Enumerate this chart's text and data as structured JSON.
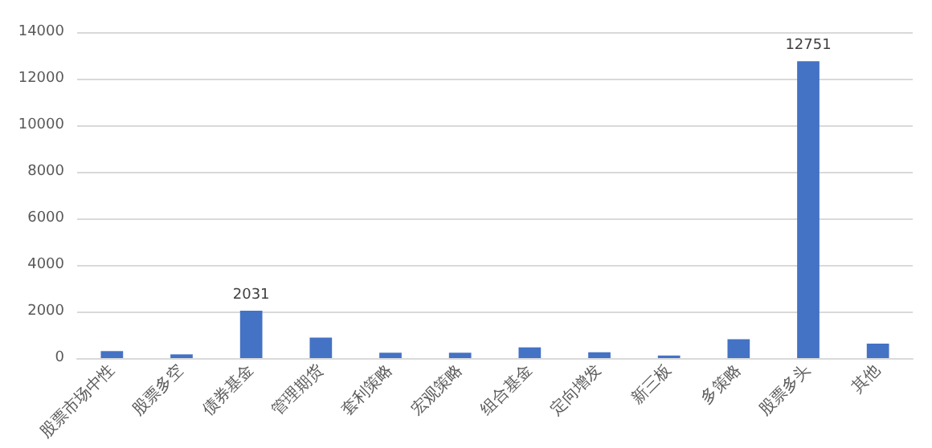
{
  "chart_data": {
    "type": "bar",
    "categories": [
      "股票市场中性",
      "股票多空",
      "债券基金",
      "管理期货",
      "套利策略",
      "宏观策略",
      "组合基金",
      "定向增发",
      "新三板",
      "多策略",
      "股票多头",
      "其他"
    ],
    "values": [
      300,
      160,
      2031,
      880,
      230,
      230,
      460,
      250,
      110,
      810,
      12751,
      620
    ],
    "value_labels": [
      null,
      null,
      "2031",
      null,
      null,
      null,
      null,
      null,
      null,
      null,
      "12751",
      null
    ],
    "color": "#4472c4",
    "ylim": [
      0,
      14000
    ],
    "yticks": [
      0,
      2000,
      4000,
      6000,
      8000,
      10000,
      12000,
      14000
    ],
    "grid": "y"
  }
}
